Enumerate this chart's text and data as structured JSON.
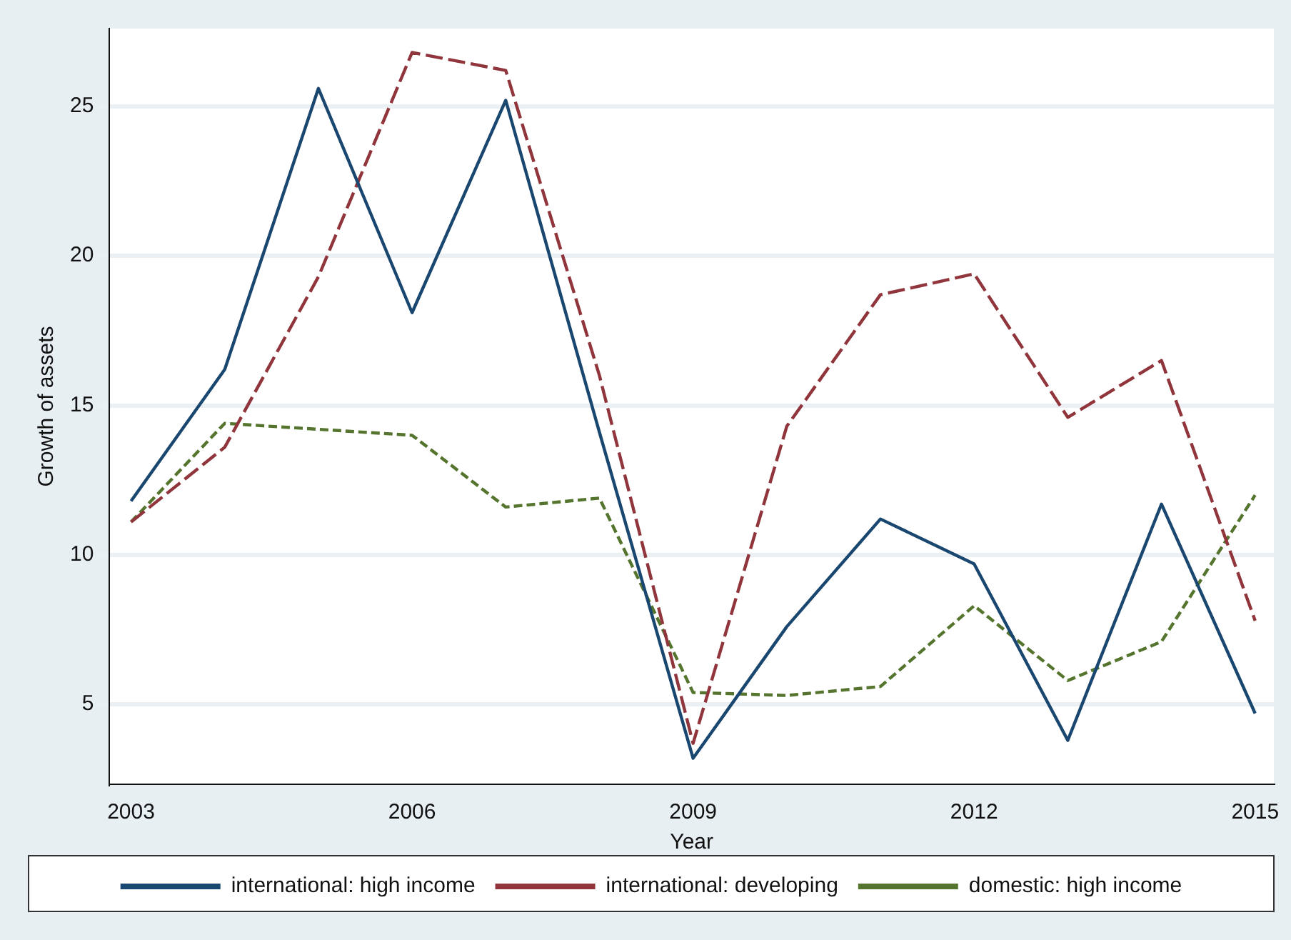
{
  "chart_data": {
    "type": "line",
    "xlabel": "Year",
    "ylabel": "Growth of assets",
    "x": [
      2003,
      2004,
      2005,
      2006,
      2007,
      2008,
      2009,
      2010,
      2011,
      2012,
      2013,
      2014,
      2015
    ],
    "xlim": [
      2002.77,
      2015.2
    ],
    "xticks": [
      2003,
      2006,
      2009,
      2012,
      2015
    ],
    "ylim": [
      2.33,
      27.6
    ],
    "yticks": [
      5,
      10,
      15,
      20,
      25
    ],
    "grid": "y",
    "legend": "bottom",
    "marker": "none",
    "series": [
      {
        "name": "international: high income",
        "color": "#1a476f",
        "line_style": "solid",
        "values": [
          11.8,
          16.2,
          25.6,
          18.1,
          25.2,
          14.1,
          3.2,
          7.6,
          11.2,
          9.7,
          3.8,
          11.7,
          4.7
        ]
      },
      {
        "name": "international: developing",
        "color": "#90353b",
        "line_style": "dashed",
        "values": [
          11.1,
          13.6,
          19.3,
          26.8,
          26.2,
          16.0,
          3.7,
          14.3,
          18.7,
          19.4,
          14.6,
          16.5,
          7.8
        ]
      },
      {
        "name": "domestic: high income",
        "color": "#55752f",
        "line_style": "dotted",
        "values": [
          11.1,
          14.4,
          14.2,
          14.0,
          11.6,
          11.9,
          5.4,
          5.3,
          5.6,
          8.3,
          5.8,
          7.1,
          12.0
        ]
      }
    ]
  }
}
